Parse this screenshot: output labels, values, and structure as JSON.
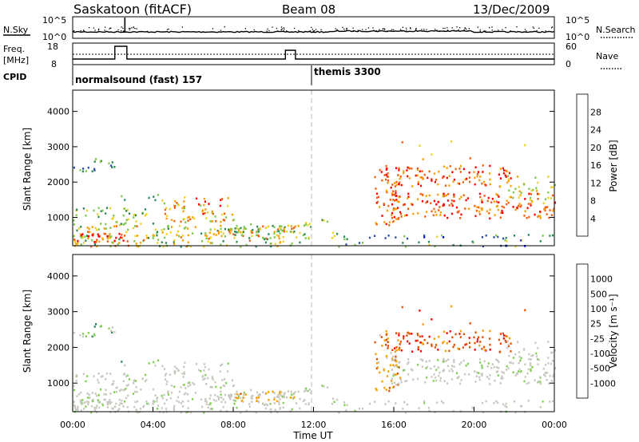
{
  "header": {
    "radar": "Saskatoon (fitACF)",
    "beam": "Beam 08",
    "date": "13/Dec/2009"
  },
  "noise_panel": {
    "left_label": "N.Sky",
    "right_label": "N.Search",
    "left_ticks": [
      "10^5",
      "10^0"
    ],
    "right_ticks": [
      "10^5",
      "10^0"
    ]
  },
  "freq_panel": {
    "left_label_1": "Freq.",
    "left_label_2": "[MHz]",
    "right_label": "Nave",
    "left_ticks": [
      "18",
      "8"
    ],
    "right_ticks": [
      "60",
      "0"
    ]
  },
  "cpid": {
    "label": "CPID",
    "segments": [
      {
        "name": "normalsound (fast) 157",
        "start_hour": 0
      },
      {
        "name": "themis 3300",
        "start_hour": 12
      }
    ]
  },
  "colors": {
    "power": [
      "#0000ff",
      "#2f4fa8",
      "#2e8b57",
      "#7ec850",
      "#f0d020",
      "#f7a000",
      "#f06010",
      "#ff0000"
    ],
    "velocity": [
      "#ff0000",
      "#e05000",
      "#f5a000",
      "#c8c8c0",
      "#c8c8c0",
      "#7ed050",
      "#2e8b57",
      "#2f4fa8",
      "#0000cc"
    ]
  },
  "chart_data": [
    {
      "type": "heatmap",
      "title": "",
      "ylabel": "Slant Range [km]",
      "y_ticks": [
        "1000",
        "2000",
        "3000",
        "4000"
      ],
      "ylim": [
        200,
        4600
      ],
      "colorbar_label": "Power [dB]",
      "colorbar_ticks": [
        "4",
        "8",
        "12",
        "16",
        "20",
        "24",
        "28"
      ],
      "colorbar_range": [
        0,
        32
      ]
    },
    {
      "type": "heatmap",
      "title": "",
      "xlabel": "Time UT",
      "x_ticks": [
        "00:00",
        "04:00",
        "08:00",
        "12:00",
        "16:00",
        "20:00",
        "00:00"
      ],
      "ylabel": "Slant Range [km]",
      "y_ticks": [
        "1000",
        "2000",
        "3000",
        "4000"
      ],
      "ylim": [
        200,
        4600
      ],
      "colorbar_label": "Velocity [m s⁻¹]",
      "colorbar_ticks": [
        "1000",
        "500",
        "100",
        "25",
        "-25",
        "-100",
        "-500",
        "-1000"
      ]
    }
  ]
}
